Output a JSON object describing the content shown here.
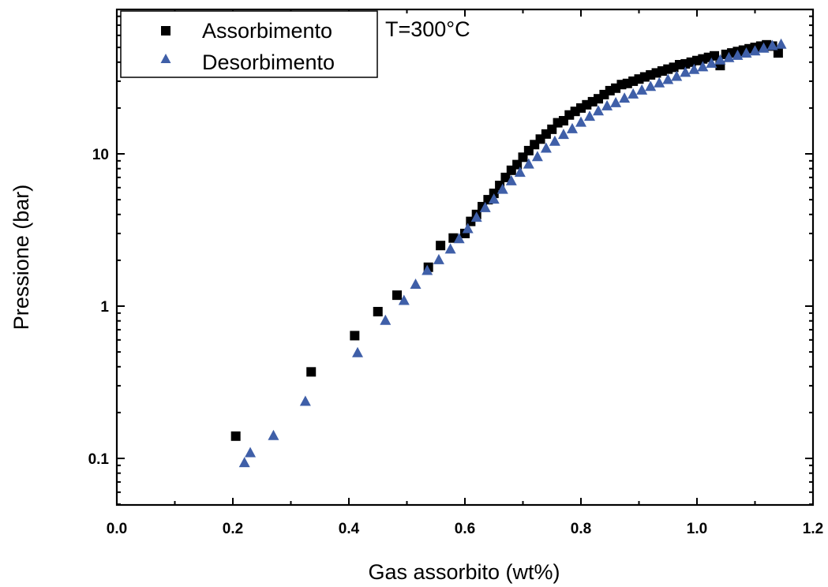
{
  "chart_data": {
    "type": "scatter",
    "title": "",
    "annotation": "T=300°C",
    "xlabel": "Gas assorbito (wt%)",
    "ylabel": "Pressione (bar)",
    "xlim": [
      0.0,
      1.2
    ],
    "ylim": [
      0.05,
      80
    ],
    "yscale": "log",
    "grid": false,
    "legend_position": "top-left",
    "x_ticks": [
      "0.0",
      "0.2",
      "0.4",
      "0.6",
      "0.8",
      "1.0",
      "1.2"
    ],
    "y_ticks": [
      "0.1",
      "1",
      "10"
    ],
    "series": [
      {
        "name": "Assorbimento",
        "marker": "square",
        "color": "#000000",
        "x": [
          0.205,
          0.335,
          0.41,
          0.45,
          0.483,
          0.537,
          0.558,
          0.58,
          0.6,
          0.61,
          0.62,
          0.63,
          0.64,
          0.65,
          0.66,
          0.67,
          0.68,
          0.69,
          0.7,
          0.71,
          0.72,
          0.73,
          0.74,
          0.75,
          0.76,
          0.77,
          0.78,
          0.79,
          0.8,
          0.81,
          0.82,
          0.83,
          0.84,
          0.85,
          0.86,
          0.87,
          0.88,
          0.89,
          0.9,
          0.91,
          0.92,
          0.93,
          0.94,
          0.95,
          0.96,
          0.97,
          0.98,
          0.99,
          1.0,
          1.01,
          1.02,
          1.03,
          1.04,
          1.05,
          1.06,
          1.07,
          1.08,
          1.09,
          1.1,
          1.11,
          1.12,
          1.13,
          1.14
        ],
        "y": [
          0.14,
          0.37,
          0.64,
          0.92,
          1.18,
          1.8,
          2.5,
          2.8,
          3.0,
          3.6,
          4.0,
          4.5,
          5.0,
          5.5,
          6.2,
          7.0,
          7.8,
          8.5,
          9.5,
          10.5,
          11.5,
          12.5,
          13.5,
          14.5,
          16.0,
          16.5,
          18.0,
          19.0,
          20.0,
          21.0,
          22.0,
          23.0,
          24.5,
          26.0,
          27.0,
          28.5,
          29.0,
          30.0,
          31.0,
          32.0,
          33.0,
          34.0,
          35.0,
          36.0,
          37.0,
          38.5,
          39.0,
          40.0,
          41.0,
          42.0,
          43.0,
          44.0,
          38.0,
          45.0,
          46.0,
          47.0,
          48.0,
          49.0,
          50.0,
          51.0,
          52.0,
          51.0,
          46.0
        ]
      },
      {
        "name": "Desorbimento",
        "marker": "triangle",
        "color": "#3f5fa8",
        "x": [
          0.22,
          0.23,
          0.27,
          0.325,
          0.415,
          0.463,
          0.495,
          0.515,
          0.535,
          0.555,
          0.575,
          0.59,
          0.605,
          0.62,
          0.635,
          0.65,
          0.665,
          0.68,
          0.695,
          0.71,
          0.725,
          0.74,
          0.755,
          0.77,
          0.785,
          0.8,
          0.815,
          0.83,
          0.845,
          0.86,
          0.875,
          0.89,
          0.905,
          0.92,
          0.935,
          0.95,
          0.965,
          0.98,
          0.995,
          1.01,
          1.025,
          1.04,
          1.055,
          1.07,
          1.085,
          1.1,
          1.115,
          1.13,
          1.145
        ],
        "y": [
          0.093,
          0.108,
          0.14,
          0.235,
          0.49,
          0.8,
          1.08,
          1.38,
          1.7,
          2.0,
          2.35,
          2.75,
          3.2,
          3.8,
          4.4,
          5.0,
          5.8,
          6.6,
          7.5,
          8.5,
          9.5,
          10.8,
          12.0,
          13.3,
          14.5,
          16.0,
          17.5,
          19.0,
          20.5,
          21.5,
          23.0,
          24.5,
          26.0,
          27.5,
          29.0,
          30.5,
          32.0,
          34.0,
          35.5,
          37.0,
          39.0,
          41.0,
          42.5,
          44.0,
          45.5,
          47.0,
          49.0,
          51.0,
          52.0
        ]
      }
    ]
  }
}
